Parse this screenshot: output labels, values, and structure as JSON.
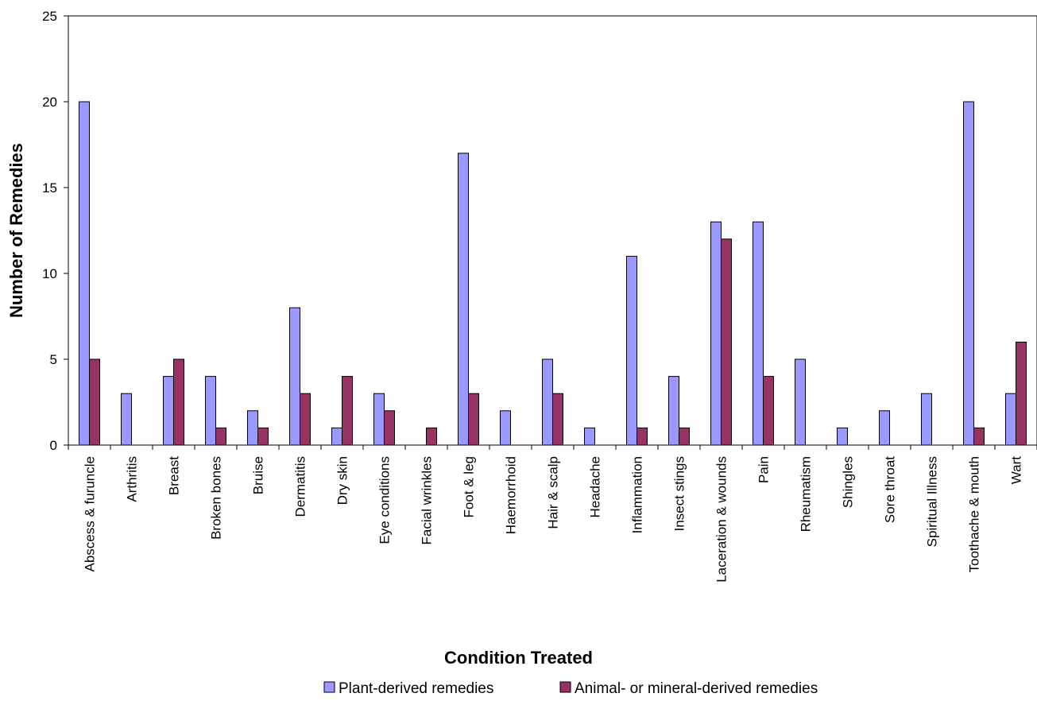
{
  "chart_data": {
    "type": "bar",
    "title": "",
    "xlabel": "Condition Treated",
    "ylabel": "Number of Remedies",
    "ylim": [
      0,
      25
    ],
    "yticks": [
      0,
      5,
      10,
      15,
      20,
      25
    ],
    "grid": false,
    "legend_position": "bottom",
    "categories": [
      "Abscess & furuncle",
      "Arthritis",
      "Breast",
      "Broken bones",
      "Bruise",
      "Dermatitis",
      "Dry skin",
      "Eye conditions",
      "Facial wrinkles",
      "Foot & leg",
      "Haemorrhoid",
      "Hair & scalp",
      "Headache",
      "Inflammation",
      "Insect stings",
      "Laceration & wounds",
      "Pain",
      "Rheumatism",
      "Shingles",
      "Sore throat",
      "Spiritual Illness",
      "Toothache & mouth",
      "Wart"
    ],
    "series": [
      {
        "name": "Plant-derived remedies",
        "color": "#9999ff",
        "values": [
          20,
          3,
          4,
          4,
          2,
          8,
          1,
          3,
          0,
          17,
          2,
          5,
          1,
          11,
          4,
          13,
          13,
          5,
          1,
          2,
          3,
          20,
          3
        ]
      },
      {
        "name": "Animal- or mineral-derived remedies",
        "color": "#993366",
        "values": [
          5,
          0,
          5,
          1,
          1,
          3,
          4,
          2,
          1,
          3,
          0,
          3,
          0,
          1,
          1,
          12,
          4,
          0,
          0,
          0,
          0,
          1,
          6
        ]
      }
    ]
  }
}
